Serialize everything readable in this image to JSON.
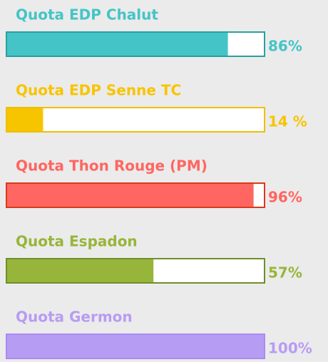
{
  "quotas": [
    {
      "label": "Quota EDP Chalut",
      "value": 86,
      "value_label": "86%",
      "color": "#45c4c7",
      "border": "#2a9fa0"
    },
    {
      "label": "Quota EDP Senne TC",
      "value": 14,
      "value_label": "14 %",
      "color": "#f7c400",
      "border": "#efbf00"
    },
    {
      "label": "Quota Thon Rouge (PM)",
      "value": 96,
      "value_label": "96%",
      "color": "#ff6661",
      "border": "#d93a1c"
    },
    {
      "label": "Quota Espadon",
      "value": 57,
      "value_label": "57%",
      "color": "#97b53a",
      "border": "#6e8f2a"
    },
    {
      "label": "Quota Germon",
      "value": 100,
      "value_label": "100%",
      "color": "#b79cf3",
      "border": "#a98af0"
    }
  ]
}
